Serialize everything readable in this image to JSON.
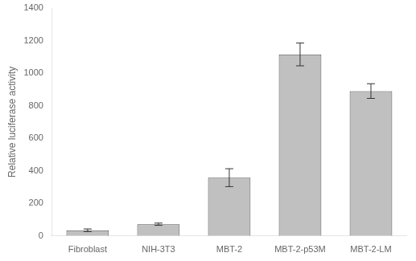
{
  "chart_data": {
    "type": "bar",
    "ylabel": "Relative luciferase activity",
    "categories": [
      "Fibroblast",
      "NIH-3T3",
      "MBT-2",
      "MBT-2-p53M",
      "MBT-2-LM"
    ],
    "values": [
      35,
      72,
      358,
      1115,
      890
    ],
    "errors": [
      8,
      7,
      55,
      70,
      45
    ],
    "color": "#c0c0c0",
    "ylim": [
      0,
      1400
    ],
    "yticks": [
      0,
      200,
      400,
      600,
      800,
      1000,
      1200,
      1400
    ],
    "grid": false
  }
}
